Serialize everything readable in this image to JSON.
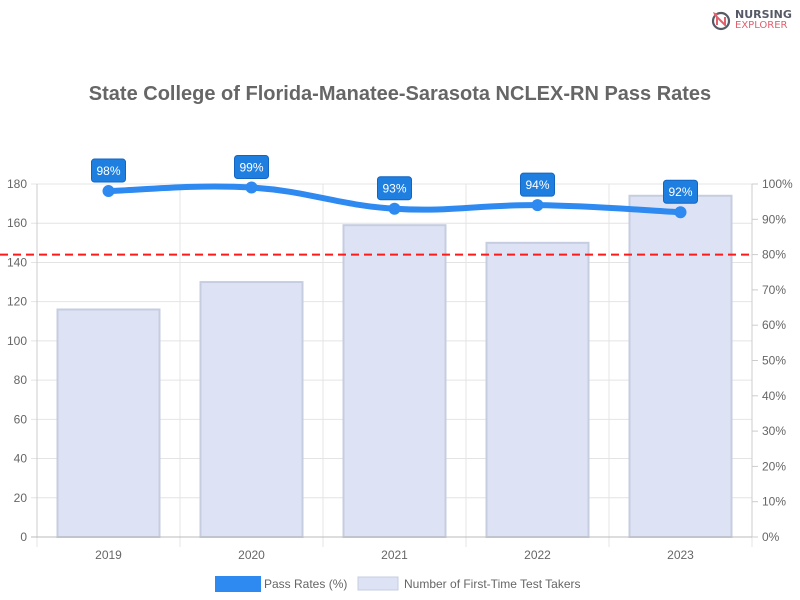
{
  "logo": {
    "line1": "NURSING",
    "line2": "EXPLORER"
  },
  "chart_data": {
    "type": "bar+line",
    "title": "State College of Florida-Manatee-Sarasota NCLEX-RN Pass Rates",
    "categories": [
      "2019",
      "2020",
      "2021",
      "2022",
      "2023"
    ],
    "series": [
      {
        "name": "Pass Rates (%)",
        "type": "line",
        "axis": "right",
        "values": [
          98,
          99,
          93,
          94,
          92
        ],
        "color": "#2e8af0"
      },
      {
        "name": "Number of First-Time Test Takers",
        "type": "bar",
        "axis": "left",
        "values": [
          116,
          130,
          159,
          150,
          174
        ],
        "color": "#dde3f5"
      }
    ],
    "data_labels": [
      "98%",
      "99%",
      "93%",
      "94%",
      "92%"
    ],
    "reference_line": {
      "value": 80,
      "axis": "right",
      "color": "#ff1a1a",
      "style": "dashed"
    },
    "y_left": {
      "ylim": [
        0,
        180
      ],
      "ticks": [
        "0",
        "20",
        "40",
        "60",
        "80",
        "100",
        "120",
        "140",
        "160",
        "180"
      ]
    },
    "y_right": {
      "ylim": [
        0,
        100
      ],
      "ticks": [
        "0%",
        "10%",
        "20%",
        "30%",
        "40%",
        "50%",
        "60%",
        "70%",
        "80%",
        "90%",
        "100%"
      ]
    },
    "grid": true,
    "legend": "bottom"
  }
}
